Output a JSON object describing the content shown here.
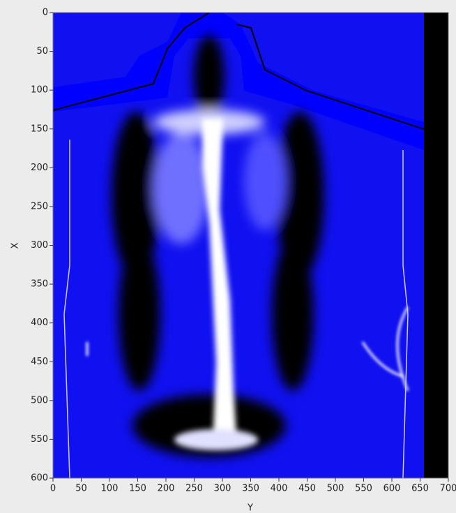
{
  "chart_data": {
    "type": "image",
    "x_label": "Y",
    "y_label": "X",
    "xlim": [
      0,
      700
    ],
    "xticks": [
      0,
      50,
      100,
      150,
      200,
      250,
      300,
      350,
      400,
      450,
      500,
      550,
      600,
      650,
      700
    ],
    "ylim": [
      600,
      0
    ],
    "yticks": [
      0,
      50,
      100,
      150,
      200,
      250,
      300,
      350,
      400,
      450,
      500,
      550,
      600
    ]
  }
}
